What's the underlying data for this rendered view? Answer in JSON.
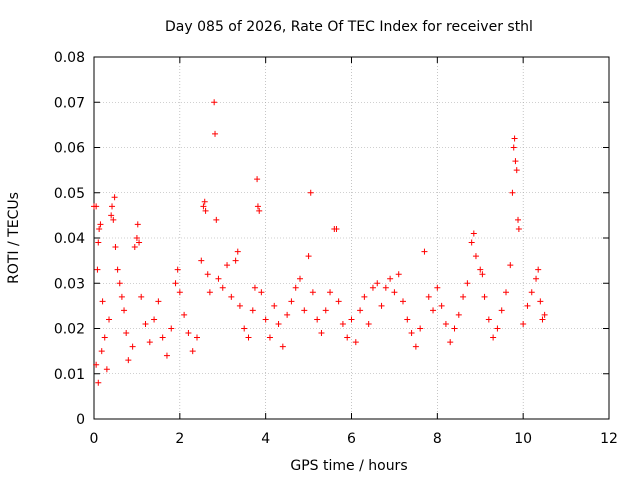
{
  "chart_data": {
    "type": "scatter",
    "title": "Day 085 of 2026, Rate Of TEC Index for receiver sthl",
    "xlabel": "GPS time / hours",
    "ylabel": "ROTI / TECUs",
    "xlim": [
      0,
      12
    ],
    "ylim": [
      0,
      0.08
    ],
    "x_ticks": [
      "0",
      "2",
      "4",
      "6",
      "8",
      "10",
      "12"
    ],
    "y_ticks": [
      "0",
      "0.01",
      "0.02",
      "0.03",
      "0.04",
      "0.05",
      "0.06",
      "0.07",
      "0.08"
    ],
    "grid": true,
    "marker": "+",
    "color": "#ff0000",
    "series": [
      {
        "name": "ROTI",
        "points": [
          [
            0.0,
            0.047
          ],
          [
            0.05,
            0.047
          ],
          [
            0.08,
            0.033
          ],
          [
            0.1,
            0.039
          ],
          [
            0.12,
            0.042
          ],
          [
            0.15,
            0.043
          ],
          [
            0.05,
            0.012
          ],
          [
            0.1,
            0.008
          ],
          [
            0.18,
            0.015
          ],
          [
            0.2,
            0.026
          ],
          [
            0.25,
            0.018
          ],
          [
            0.3,
            0.011
          ],
          [
            0.35,
            0.022
          ],
          [
            0.4,
            0.045
          ],
          [
            0.42,
            0.047
          ],
          [
            0.45,
            0.044
          ],
          [
            0.48,
            0.049
          ],
          [
            0.5,
            0.038
          ],
          [
            0.55,
            0.033
          ],
          [
            0.6,
            0.03
          ],
          [
            0.65,
            0.027
          ],
          [
            0.7,
            0.024
          ],
          [
            0.75,
            0.019
          ],
          [
            0.8,
            0.013
          ],
          [
            0.9,
            0.016
          ],
          [
            0.95,
            0.038
          ],
          [
            1.0,
            0.04
          ],
          [
            1.02,
            0.043
          ],
          [
            1.05,
            0.039
          ],
          [
            1.1,
            0.027
          ],
          [
            1.2,
            0.021
          ],
          [
            1.3,
            0.017
          ],
          [
            1.4,
            0.022
          ],
          [
            1.5,
            0.026
          ],
          [
            1.6,
            0.018
          ],
          [
            1.7,
            0.014
          ],
          [
            1.8,
            0.02
          ],
          [
            1.9,
            0.03
          ],
          [
            1.95,
            0.033
          ],
          [
            2.0,
            0.028
          ],
          [
            2.1,
            0.023
          ],
          [
            2.2,
            0.019
          ],
          [
            2.3,
            0.015
          ],
          [
            2.4,
            0.018
          ],
          [
            2.5,
            0.035
          ],
          [
            2.55,
            0.047
          ],
          [
            2.58,
            0.048
          ],
          [
            2.6,
            0.046
          ],
          [
            2.65,
            0.032
          ],
          [
            2.7,
            0.028
          ],
          [
            2.8,
            0.07
          ],
          [
            2.82,
            0.063
          ],
          [
            2.85,
            0.044
          ],
          [
            2.9,
            0.031
          ],
          [
            3.0,
            0.029
          ],
          [
            3.1,
            0.034
          ],
          [
            3.2,
            0.027
          ],
          [
            3.3,
            0.035
          ],
          [
            3.35,
            0.037
          ],
          [
            3.4,
            0.025
          ],
          [
            3.5,
            0.02
          ],
          [
            3.6,
            0.018
          ],
          [
            3.7,
            0.024
          ],
          [
            3.75,
            0.029
          ],
          [
            3.8,
            0.053
          ],
          [
            3.82,
            0.047
          ],
          [
            3.85,
            0.046
          ],
          [
            3.9,
            0.028
          ],
          [
            4.0,
            0.022
          ],
          [
            4.1,
            0.018
          ],
          [
            4.2,
            0.025
          ],
          [
            4.3,
            0.021
          ],
          [
            4.4,
            0.016
          ],
          [
            4.5,
            0.023
          ],
          [
            4.6,
            0.026
          ],
          [
            4.7,
            0.029
          ],
          [
            4.8,
            0.031
          ],
          [
            4.9,
            0.024
          ],
          [
            5.0,
            0.036
          ],
          [
            5.05,
            0.05
          ],
          [
            5.1,
            0.028
          ],
          [
            5.2,
            0.022
          ],
          [
            5.3,
            0.019
          ],
          [
            5.4,
            0.024
          ],
          [
            5.5,
            0.028
          ],
          [
            5.6,
            0.042
          ],
          [
            5.65,
            0.042
          ],
          [
            5.7,
            0.026
          ],
          [
            5.8,
            0.021
          ],
          [
            5.9,
            0.018
          ],
          [
            6.0,
            0.022
          ],
          [
            6.1,
            0.017
          ],
          [
            6.2,
            0.024
          ],
          [
            6.3,
            0.027
          ],
          [
            6.4,
            0.021
          ],
          [
            6.5,
            0.029
          ],
          [
            6.6,
            0.03
          ],
          [
            6.7,
            0.025
          ],
          [
            6.8,
            0.029
          ],
          [
            6.9,
            0.031
          ],
          [
            7.0,
            0.028
          ],
          [
            7.1,
            0.032
          ],
          [
            7.2,
            0.026
          ],
          [
            7.3,
            0.022
          ],
          [
            7.4,
            0.019
          ],
          [
            7.5,
            0.016
          ],
          [
            7.6,
            0.02
          ],
          [
            7.7,
            0.037
          ],
          [
            7.8,
            0.027
          ],
          [
            7.9,
            0.024
          ],
          [
            8.0,
            0.029
          ],
          [
            8.1,
            0.025
          ],
          [
            8.2,
            0.021
          ],
          [
            8.3,
            0.017
          ],
          [
            8.4,
            0.02
          ],
          [
            8.5,
            0.023
          ],
          [
            8.6,
            0.027
          ],
          [
            8.7,
            0.03
          ],
          [
            8.8,
            0.039
          ],
          [
            8.85,
            0.041
          ],
          [
            8.9,
            0.036
          ],
          [
            9.0,
            0.033
          ],
          [
            9.05,
            0.032
          ],
          [
            9.1,
            0.027
          ],
          [
            9.2,
            0.022
          ],
          [
            9.3,
            0.018
          ],
          [
            9.4,
            0.02
          ],
          [
            9.5,
            0.024
          ],
          [
            9.6,
            0.028
          ],
          [
            9.7,
            0.034
          ],
          [
            9.75,
            0.05
          ],
          [
            9.78,
            0.06
          ],
          [
            9.8,
            0.062
          ],
          [
            9.82,
            0.057
          ],
          [
            9.85,
            0.055
          ],
          [
            9.88,
            0.044
          ],
          [
            9.9,
            0.042
          ],
          [
            10.0,
            0.021
          ],
          [
            10.1,
            0.025
          ],
          [
            10.2,
            0.028
          ],
          [
            10.3,
            0.031
          ],
          [
            10.35,
            0.033
          ],
          [
            10.4,
            0.026
          ],
          [
            10.45,
            0.022
          ],
          [
            10.5,
            0.023
          ]
        ]
      }
    ]
  }
}
